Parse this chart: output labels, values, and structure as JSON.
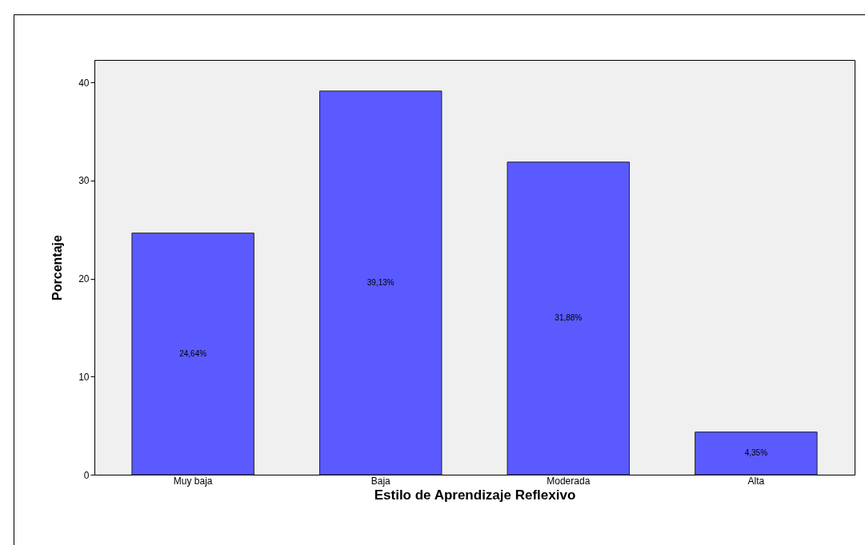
{
  "chart_data": {
    "type": "bar",
    "xlabel": "Estilo de Aprendizaje Reflexivo",
    "ylabel": "Porcentaje",
    "categories": [
      "Muy baja",
      "Baja",
      "Moderada",
      "Alta"
    ],
    "values": [
      24.64,
      39.13,
      31.88,
      4.35
    ],
    "value_labels": [
      "24,64%",
      "39,13%",
      "31,88%",
      "4,35%"
    ],
    "color": "#5a5aff",
    "ylim": [
      0,
      42.3
    ],
    "yticks": [
      0,
      10,
      20,
      30,
      40
    ]
  }
}
